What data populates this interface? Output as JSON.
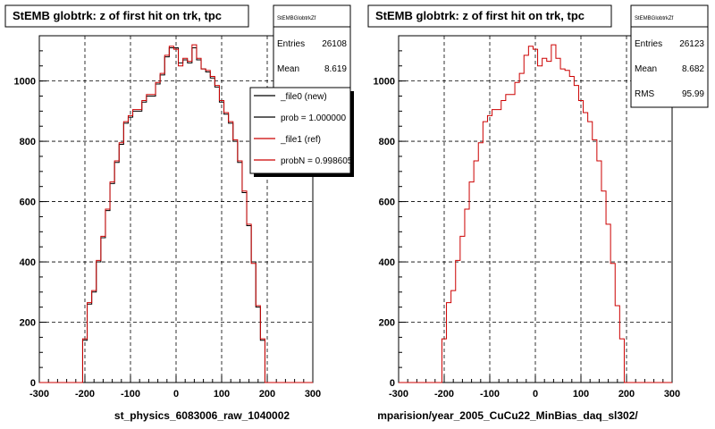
{
  "chart_data": [
    {
      "type": "histogram",
      "title": "StEMB globtrk: z of first hit on trk, tpc",
      "xlabel": "st_physics_6083006_raw_1040002",
      "xlim": [
        -300,
        300
      ],
      "ylim": [
        0,
        1150
      ],
      "xticks": [
        "-300",
        "-200",
        "-100",
        "0",
        "100",
        "200",
        "300"
      ],
      "yticks": [
        "0",
        "200",
        "400",
        "600",
        "800",
        "1000"
      ],
      "grid": true,
      "stats": {
        "name": "StEMBGlobtrkZf",
        "rows": [
          {
            "label": "Entries",
            "value": "26108"
          },
          {
            "label": "Mean",
            "value": "8.619"
          }
        ]
      },
      "legend": {
        "placement": "top-right",
        "entries": [
          {
            "label": "_file0 (new)",
            "color": "#000000"
          },
          {
            "label": "prob = 1.000000",
            "color": "#000000"
          },
          {
            "label": "_file1 (ref)",
            "color": "#cc0000"
          },
          {
            "label": "probN = 0.998605",
            "color": "#cc0000"
          }
        ]
      },
      "bin_width": 10,
      "x": [
        -210,
        -200,
        -190,
        -180,
        -170,
        -160,
        -150,
        -140,
        -130,
        -120,
        -110,
        -100,
        -90,
        -80,
        -70,
        -60,
        -50,
        -40,
        -30,
        -20,
        -10,
        0,
        10,
        20,
        30,
        40,
        50,
        60,
        70,
        80,
        90,
        100,
        110,
        120,
        130,
        140,
        150,
        160,
        170,
        180,
        190,
        200,
        210
      ],
      "series": [
        {
          "name": "_file0 (new)",
          "color": "#000000",
          "values": [
            0,
            140,
            260,
            300,
            400,
            480,
            570,
            660,
            730,
            790,
            860,
            880,
            900,
            900,
            930,
            950,
            950,
            990,
            1020,
            1080,
            1110,
            1110,
            1060,
            1070,
            1060,
            1110,
            1070,
            1040,
            1030,
            1010,
            980,
            930,
            890,
            860,
            800,
            730,
            630,
            520,
            400,
            250,
            140,
            0,
            0
          ]
        },
        {
          "name": "_file1 (ref)",
          "color": "#cc0000",
          "values": [
            0,
            145,
            265,
            305,
            405,
            485,
            575,
            665,
            735,
            795,
            865,
            885,
            905,
            905,
            935,
            955,
            955,
            995,
            1025,
            1085,
            1115,
            1105,
            1050,
            1075,
            1065,
            1120,
            1075,
            1040,
            1035,
            1015,
            985,
            935,
            895,
            865,
            805,
            735,
            635,
            525,
            395,
            255,
            145,
            0,
            0
          ]
        }
      ]
    },
    {
      "type": "histogram",
      "title": "StEMB globtrk: z of first hit on trk, tpc",
      "xlabel": "mparision/year_2005_CuCu22_MinBias_daq_sl302/",
      "xlim": [
        -300,
        300
      ],
      "ylim": [
        0,
        1150
      ],
      "xticks": [
        "-300",
        "-200",
        "-100",
        "0",
        "100",
        "200",
        "300"
      ],
      "yticks": [
        "0",
        "200",
        "400",
        "600",
        "800",
        "1000"
      ],
      "grid": true,
      "stats": {
        "name": "StEMBGlobtrkZf",
        "rows": [
          {
            "label": "Entries",
            "value": "26123"
          },
          {
            "label": "Mean",
            "value": "8.682"
          },
          {
            "label": "RMS",
            "value": "95.99"
          }
        ]
      },
      "bin_width": 10,
      "x": [
        -210,
        -200,
        -190,
        -180,
        -170,
        -160,
        -150,
        -140,
        -130,
        -120,
        -110,
        -100,
        -90,
        -80,
        -70,
        -60,
        -50,
        -40,
        -30,
        -20,
        -10,
        0,
        10,
        20,
        30,
        40,
        50,
        60,
        70,
        80,
        90,
        100,
        110,
        120,
        130,
        140,
        150,
        160,
        170,
        180,
        190,
        200,
        210
      ],
      "series": [
        {
          "name": "_file1 (ref)",
          "color": "#cc0000",
          "values": [
            0,
            145,
            265,
            305,
            405,
            485,
            575,
            665,
            735,
            795,
            865,
            885,
            905,
            905,
            935,
            955,
            955,
            995,
            1025,
            1085,
            1115,
            1105,
            1050,
            1075,
            1065,
            1120,
            1075,
            1040,
            1035,
            1015,
            985,
            935,
            895,
            865,
            805,
            735,
            635,
            525,
            395,
            255,
            145,
            0,
            0
          ]
        }
      ]
    }
  ]
}
